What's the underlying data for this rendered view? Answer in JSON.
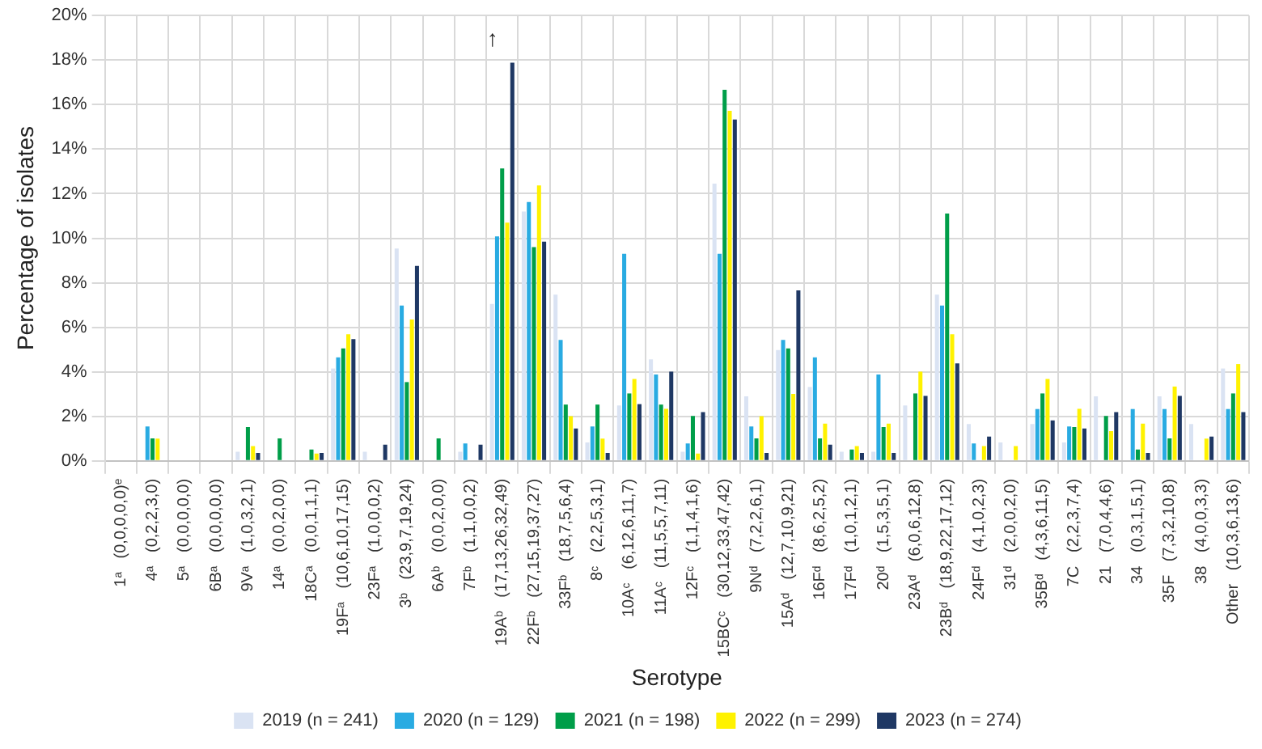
{
  "chart_data": {
    "type": "bar",
    "xlabel": "Serotype",
    "ylabel": "Percentage of isolates",
    "categories": [
      "1ᵃ   (0,0,0,0,0)ᵉ",
      "4ᵃ   (0,2,2,3,0)",
      "5ᵃ   (0,0,0,0,0)",
      "6Bᵃ   (0,0,0,0,0)",
      "9Vᵃ   (1,0,3,2,1)",
      "14ᵃ   (0,0,2,0,0)",
      "18Cᵃ   (0,0,1,1,1)",
      "19Fᵃ   (10,6,10,17,15)",
      "23Fᵃ   (1,0,0,0,2)",
      "3ᵇ   (23,9,7,19,24)",
      "6Aᵇ   (0,0,2,0,0)",
      "7Fᵇ   (1,1,0,0,2)",
      "19Aᵇ   (17,13,26,32,49)",
      "22Fᵇ   (27,15,19,37,27)",
      "33Fᵇ   (18,7,5,6,4)",
      "8ᶜ   (2,2,5,3,1)",
      "10Aᶜ   (6,12,6,11,7)",
      "11Aᶜ   (11,5,5,7,11)",
      "12Fᶜ   (1,1,4,1,6)",
      "15BCᶜ   (30,12,33,47,42)",
      "9Nᵈ   (7,2,2,6,1)",
      "15Aᵈ   (12,7,10,9,21)",
      "16Fᵈ   (8,6,2,5,2)",
      "17Fᵈ   (1,0,1,2,1)",
      "20ᵈ   (1,5,3,5,1)",
      "23Aᵈ   (6,0,6,12,8)",
      "23Bᵈ   (18,9,22,17,12)",
      "24Fᵈ   (4,1,0,2,3)",
      "31ᵈ   (2,0,0,2,0)",
      "35Bᵈ   (4,3,6,11,5)",
      "7C   (2,2,3,7,4)",
      "21   (7,0,4,4,6)",
      "34   (0,3,1,5,1)",
      "35F   (7,3,2,10,8)",
      "38   (4,0,0,3,3)",
      "Other   (10,3,6,13,6)"
    ],
    "series": [
      {
        "name": "2019 (n = 241)",
        "color": "#dae3f3",
        "values": [
          0,
          0,
          0,
          0,
          0.41,
          0,
          0,
          4.15,
          0.41,
          9.54,
          0,
          0.41,
          7.05,
          11.2,
          7.47,
          0.83,
          2.49,
          4.56,
          0.41,
          12.45,
          2.9,
          4.98,
          3.32,
          0.41,
          0.41,
          2.49,
          7.47,
          1.66,
          0.83,
          1.66,
          0.83,
          2.9,
          0,
          2.9,
          1.66,
          4.15
        ]
      },
      {
        "name": "2020 (n = 129)",
        "color": "#29abe2",
        "values": [
          0,
          1.55,
          0,
          0,
          0,
          0,
          0,
          4.65,
          0,
          6.98,
          0,
          0.78,
          10.08,
          11.63,
          5.43,
          1.55,
          9.3,
          3.88,
          0.78,
          9.3,
          1.55,
          5.43,
          4.65,
          0,
          3.88,
          0,
          6.98,
          0.78,
          0,
          2.33,
          1.55,
          0,
          2.33,
          2.33,
          0,
          2.33
        ]
      },
      {
        "name": "2021 (n = 198)",
        "color": "#009e49",
        "values": [
          0,
          1.01,
          0,
          0,
          1.52,
          1.01,
          0.51,
          5.05,
          0,
          3.54,
          1.01,
          0,
          13.13,
          9.6,
          2.53,
          2.53,
          3.03,
          2.53,
          2.02,
          16.67,
          1.01,
          5.05,
          1.01,
          0.51,
          1.52,
          3.03,
          11.11,
          0,
          0,
          3.03,
          1.52,
          2.02,
          0.51,
          1.01,
          0,
          3.03
        ]
      },
      {
        "name": "2022 (n = 299)",
        "color": "#fff200",
        "values": [
          0,
          1.0,
          0,
          0,
          0.67,
          0,
          0.33,
          5.69,
          0,
          6.35,
          0,
          0,
          10.7,
          12.37,
          2.01,
          1.0,
          3.68,
          2.34,
          0.33,
          15.72,
          2.01,
          3.01,
          1.67,
          0.67,
          1.67,
          4.01,
          5.69,
          0.67,
          0.67,
          3.68,
          2.34,
          1.34,
          1.67,
          3.34,
          1.0,
          4.35
        ]
      },
      {
        "name": "2023 (n = 274)",
        "color": "#1f3864",
        "values": [
          0,
          0,
          0,
          0,
          0.36,
          0,
          0.36,
          5.47,
          0.73,
          8.76,
          0,
          0.73,
          17.88,
          9.85,
          1.46,
          0.36,
          2.55,
          4.01,
          2.19,
          15.33,
          0.36,
          7.66,
          0.73,
          0.36,
          0.36,
          2.92,
          4.38,
          1.09,
          0,
          1.82,
          1.46,
          2.19,
          0.36,
          2.92,
          1.09,
          2.19
        ]
      }
    ],
    "ylim": [
      0,
      20
    ],
    "yticks": [
      {
        "value": 0,
        "label": "0%"
      },
      {
        "value": 2,
        "label": "2%"
      },
      {
        "value": 4,
        "label": "4%"
      },
      {
        "value": 6,
        "label": "6%"
      },
      {
        "value": 8,
        "label": "8%"
      },
      {
        "value": 10,
        "label": "10%"
      },
      {
        "value": 12,
        "label": "12%"
      },
      {
        "value": 14,
        "label": "14%"
      },
      {
        "value": 16,
        "label": "16%"
      },
      {
        "value": 18,
        "label": "18%"
      },
      {
        "value": 20,
        "label": "20%"
      }
    ],
    "grid": true,
    "legend": "bottom",
    "annotations": [
      "↑"
    ]
  }
}
